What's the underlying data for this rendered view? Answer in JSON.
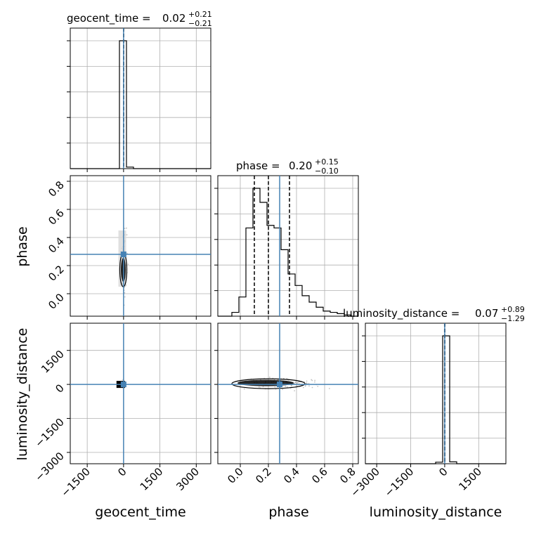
{
  "colors": {
    "truth": "#4682b4",
    "hist": "#000000",
    "grid": "#b0b0b0",
    "scatter": "#9a9a9a",
    "frame": "#000000"
  },
  "chart_data": {
    "type": "corner",
    "parameters": [
      "geocent_time",
      "phase",
      "luminosity_distance"
    ],
    "labels": {
      "geocent_time": "geocent_time",
      "phase": "phase",
      "luminosity_distance": "luminosity_distance"
    },
    "titles": {
      "geocent_time": {
        "prefix": "geocent_time = ",
        "median": "0.02",
        "plus": "+0.21",
        "minus": "−0.21"
      },
      "phase": {
        "prefix": "phase = ",
        "median": "0.20",
        "plus": "+0.15",
        "minus": "−0.10"
      },
      "luminosity_distance": {
        "prefix": "luminosity_distance = ",
        "median": "0.07",
        "plus": "+0.89",
        "minus": "−1.29"
      }
    },
    "axes": {
      "geocent_time": {
        "range": [
          -2200,
          3600
        ],
        "ticks": [
          -1500,
          0,
          1500,
          3000
        ],
        "tick_labels": [
          "−1500",
          "0",
          "1500",
          "3000"
        ]
      },
      "phase": {
        "range": [
          -0.16,
          0.84
        ],
        "ticks": [
          0.0,
          0.2,
          0.4,
          0.6,
          0.8
        ],
        "tick_labels": [
          "0.0",
          "0.2",
          "0.4",
          "0.6",
          "0.8"
        ]
      },
      "luminosity_distance": {
        "range": [
          -3500,
          2700
        ],
        "ticks": [
          -3000,
          -1500,
          0,
          1500
        ],
        "tick_labels": [
          "−3000",
          "−1500",
          "0",
          "1500"
        ]
      }
    },
    "truths": {
      "geocent_time": 0,
      "phase": 0.28,
      "luminosity_distance": 0
    },
    "quantiles": {
      "geocent_time": [
        -0.19,
        0.02,
        0.23
      ],
      "phase": [
        0.1,
        0.2,
        0.35
      ],
      "luminosity_distance": [
        -1.22,
        0.07,
        0.96
      ]
    },
    "histograms": {
      "geocent_time": {
        "edges": [
          -2200,
          -1910,
          -1620,
          -1330,
          -1040,
          -750,
          -460,
          -170,
          120,
          410,
          700,
          990,
          1280,
          1570,
          1860,
          2150,
          2440,
          2730,
          3020,
          3310,
          3600
        ],
        "counts": [
          0,
          0,
          0,
          0,
          0,
          0,
          0,
          1.0,
          0.012,
          0,
          0,
          0,
          0,
          0,
          0,
          0,
          0,
          0,
          0,
          0
        ]
      },
      "phase": {
        "edges": [
          -0.16,
          -0.11,
          -0.06,
          -0.01,
          0.04,
          0.09,
          0.14,
          0.19,
          0.24,
          0.29,
          0.34,
          0.39,
          0.44,
          0.49,
          0.54,
          0.59,
          0.64,
          0.69,
          0.74,
          0.79,
          0.84
        ],
        "counts": [
          0,
          0,
          0.03,
          0.15,
          0.69,
          1.0,
          0.89,
          0.71,
          0.69,
          0.52,
          0.33,
          0.24,
          0.16,
          0.11,
          0.07,
          0.04,
          0.03,
          0.02,
          0.01,
          0
        ]
      },
      "luminosity_distance": {
        "edges": [
          -3500,
          -3190,
          -2880,
          -2570,
          -2260,
          -1950,
          -1640,
          -1330,
          -1020,
          -710,
          -400,
          -90,
          220,
          530,
          840,
          1150,
          1460,
          1770,
          2080,
          2390,
          2700
        ],
        "counts": [
          0,
          0,
          0,
          0,
          0,
          0,
          0,
          0,
          0,
          0,
          0.012,
          1.0,
          0.015,
          0,
          0,
          0,
          0,
          0,
          0,
          0
        ]
      }
    }
  }
}
